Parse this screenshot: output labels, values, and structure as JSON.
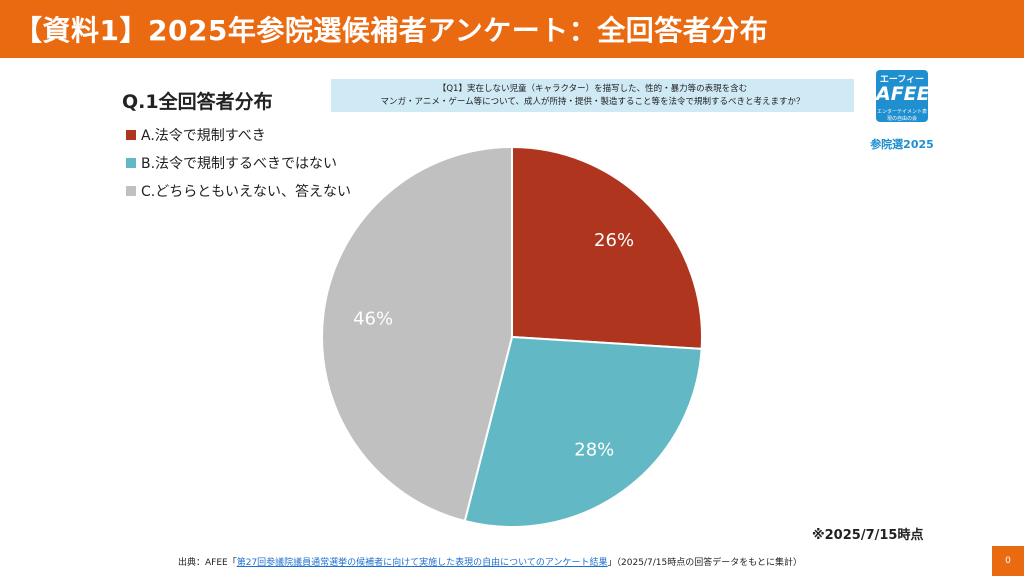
{
  "header": {
    "title": "【資料1】2025年参院選候補者アンケート：全回答者分布"
  },
  "question": {
    "line1": "【Q1】実在しない児童（キャラクター）を描写した、性的・暴力等の表現を含む",
    "line2": "マンガ・アニメ・ゲーム等について、成人が所持・提供・製造すること等を法令で規制するべきと考えますか？"
  },
  "logo": {
    "kana": "エーフィー",
    "main": "AFEE",
    "sub": "エンターテイメント表現の自由の会",
    "caption": "参院選2025"
  },
  "chart_data": {
    "type": "pie",
    "title": "Q.1全回答者分布",
    "categories": [
      "A.法令で規制すべき",
      "B.法令で規制するべきではない",
      "C.どちらともいえない、答えない"
    ],
    "values": [
      26,
      28,
      46
    ],
    "labels": [
      "26%",
      "28%",
      "46%"
    ],
    "colors": [
      "#b0351f",
      "#63b8c5",
      "#c0c0c0"
    ],
    "legend_position": "top-left",
    "start_angle": "12 o'clock",
    "direction": "clockwise"
  },
  "asof": "※2025/7/15時点",
  "source": {
    "prefix": "出典：AFEE「",
    "link": "第27回参議院議員通常選挙の候補者に向けて実施した表現の自由についてのアンケート結果",
    "suffix": "」（2025/7/15時点の回答データをもとに集計）"
  },
  "page_number": "0"
}
